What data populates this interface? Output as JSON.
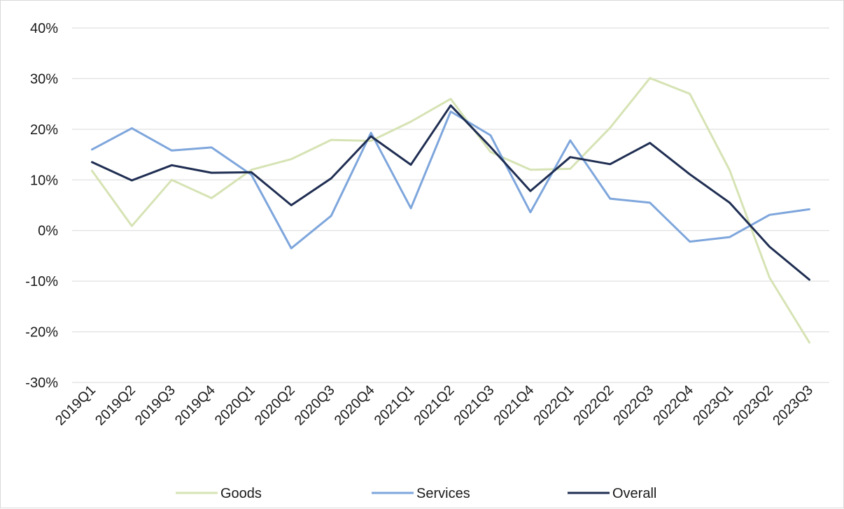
{
  "chart_data": {
    "type": "line",
    "title": "",
    "xlabel": "",
    "ylabel": "",
    "y_unit": "%",
    "ylim": [
      -30,
      40
    ],
    "y_ticks": [
      40,
      30,
      20,
      10,
      0,
      -10,
      -20,
      -30
    ],
    "y_tick_labels": [
      "40%",
      "30%",
      "20%",
      "10%",
      "0%",
      "-10%",
      "-20%",
      "-30%"
    ],
    "grid": "horizontal",
    "legend_position": "bottom",
    "categories": [
      "2019Q1",
      "2019Q2",
      "2019Q3",
      "2019Q4",
      "2020Q1",
      "2020Q2",
      "2020Q3",
      "2020Q4",
      "2021Q1",
      "2021Q2",
      "2021Q3",
      "2021Q4",
      "2022Q1",
      "2022Q2",
      "2022Q3",
      "2022Q4",
      "2023Q1",
      "2023Q2",
      "2023Q3"
    ],
    "series": [
      {
        "name": "Goods",
        "color": "#d6e3b4",
        "values": [
          11.8,
          0.9,
          10.0,
          6.4,
          12.0,
          14.1,
          17.9,
          17.7,
          21.5,
          26.0,
          15.5,
          12.0,
          12.2,
          20.3,
          30.1,
          27.0,
          11.9,
          -9.3,
          -22.1
        ]
      },
      {
        "name": "Services",
        "color": "#7ea6dc",
        "values": [
          16.0,
          20.2,
          15.8,
          16.4,
          11.0,
          -3.5,
          2.9,
          19.3,
          4.4,
          23.5,
          18.8,
          3.6,
          17.8,
          6.3,
          5.5,
          -2.2,
          -1.3,
          3.1,
          4.2
        ]
      },
      {
        "name": "Overall",
        "color": "#1f2e52",
        "values": [
          13.5,
          9.9,
          12.9,
          11.4,
          11.5,
          5.0,
          10.3,
          18.6,
          13.0,
          24.7,
          16.5,
          7.8,
          14.5,
          13.1,
          17.3,
          11.1,
          5.5,
          -3.2,
          -9.7
        ]
      }
    ]
  }
}
